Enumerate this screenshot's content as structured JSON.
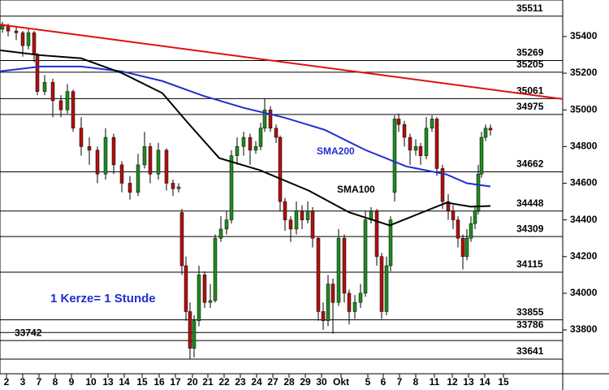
{
  "chart_data": {
    "type": "candlestick",
    "xlim": [
      0,
      693
    ],
    "xticks": [
      {
        "value": 8,
        "label": "2"
      },
      {
        "value": 28,
        "label": "3"
      },
      {
        "value": 48,
        "label": "7"
      },
      {
        "value": 68,
        "label": "8"
      },
      {
        "value": 88,
        "label": "9"
      },
      {
        "value": 112,
        "label": "10"
      },
      {
        "value": 133,
        "label": "13"
      },
      {
        "value": 153,
        "label": "14"
      },
      {
        "value": 175,
        "label": "15"
      },
      {
        "value": 196,
        "label": "16"
      },
      {
        "value": 216,
        "label": "17"
      },
      {
        "value": 237,
        "label": "20"
      },
      {
        "value": 256,
        "label": "21"
      },
      {
        "value": 276,
        "label": "22"
      },
      {
        "value": 296,
        "label": "23"
      },
      {
        "value": 316,
        "label": "24"
      },
      {
        "value": 336,
        "label": "27"
      },
      {
        "value": 356,
        "label": "28"
      },
      {
        "value": 376,
        "label": "29"
      },
      {
        "value": 396,
        "label": "30"
      },
      {
        "value": 420,
        "label": "Okt"
      },
      {
        "value": 453,
        "label": "5"
      },
      {
        "value": 472,
        "label": "6"
      },
      {
        "value": 492,
        "label": "7"
      },
      {
        "value": 512,
        "label": "8"
      },
      {
        "value": 535,
        "label": "11"
      },
      {
        "value": 557,
        "label": "12"
      },
      {
        "value": 577,
        "label": "13"
      },
      {
        "value": 597,
        "label": "14"
      },
      {
        "value": 620,
        "label": "15"
      }
    ],
    "ylim": [
      33561,
      35599
    ],
    "yticks": [
      33800,
      34000,
      34200,
      34400,
      34600,
      34800,
      35000,
      35200,
      35400
    ],
    "up_color": "#1f8a1f",
    "down_color": "#b01010",
    "x": [
      3,
      10,
      20,
      28,
      35,
      42,
      46,
      55,
      65,
      75,
      83,
      90,
      100,
      110,
      120,
      130,
      140,
      150,
      160,
      170,
      178,
      185,
      195,
      205,
      213,
      220,
      224,
      229,
      234,
      239,
      245,
      252,
      259,
      265,
      272,
      279,
      285,
      292,
      300,
      308,
      315,
      321,
      326,
      333,
      340,
      345,
      351,
      358,
      365,
      372,
      379,
      385,
      392,
      398,
      404,
      410,
      417,
      424,
      430,
      437,
      444,
      450,
      457,
      464,
      470,
      476,
      481,
      486,
      491,
      498,
      505,
      512,
      518,
      525,
      532,
      538,
      545,
      552,
      558,
      564,
      570,
      575,
      580,
      585,
      589,
      593,
      598,
      604
    ],
    "open": [
      35440,
      35460,
      35430,
      35420,
      35350,
      35420,
      35300,
      35100,
      35150,
      35050,
      35000,
      35100,
      34900,
      34800,
      34780,
      34650,
      34850,
      34700,
      34600,
      34550,
      34700,
      34800,
      34650,
      34780,
      34600,
      34570,
      34440,
      34150,
      33900,
      33700,
      33850,
      34100,
      33950,
      33960,
      34300,
      34350,
      34400,
      34750,
      34800,
      34850,
      34780,
      34800,
      34900,
      35000,
      34900,
      34850,
      34500,
      34400,
      34350,
      34450,
      34400,
      34450,
      34300,
      33900,
      33850,
      34050,
      33950,
      34300,
      34000,
      33900,
      33950,
      34000,
      34400,
      34450,
      34200,
      33900,
      34150,
      34550,
      34950,
      34920,
      34850,
      34780,
      34800,
      34750,
      34900,
      34950,
      34680,
      34500,
      34450,
      34400,
      34300,
      34200,
      34300,
      34380,
      34450,
      34650,
      34850,
      34900
    ],
    "high": [
      35480,
      35470,
      35450,
      35430,
      35440,
      35430,
      35310,
      35190,
      35170,
      35080,
      35140,
      35110,
      34960,
      34850,
      34800,
      34900,
      34870,
      34720,
      34640,
      34760,
      34880,
      34820,
      34820,
      34790,
      34620,
      34600,
      34460,
      34200,
      33950,
      33880,
      34150,
      34120,
      34050,
      34320,
      34420,
      34450,
      34780,
      34850,
      34880,
      34870,
      34830,
      34930,
      35060,
      35020,
      34920,
      34860,
      34520,
      34420,
      34500,
      34480,
      34500,
      34470,
      34310,
      33950,
      34100,
      34080,
      34350,
      34320,
      34020,
      33990,
      34050,
      34450,
      34470,
      34460,
      34220,
      34200,
      34420,
      34970,
      34980,
      34940,
      34870,
      34840,
      34820,
      34960,
      34970,
      34960,
      34700,
      34540,
      34480,
      34420,
      34320,
      34350,
      34420,
      34480,
      34700,
      34880,
      34920,
      34920
    ],
    "low": [
      35420,
      35400,
      35380,
      35290,
      35330,
      35260,
      35080,
      35080,
      34960,
      34960,
      34980,
      34880,
      34750,
      34700,
      34600,
      34620,
      34650,
      34550,
      34510,
      34530,
      34680,
      34600,
      34620,
      34560,
      34530,
      34550,
      34100,
      33850,
      33640,
      33650,
      33820,
      33920,
      33920,
      33950,
      34280,
      34320,
      34380,
      34700,
      34750,
      34700,
      34760,
      34780,
      34880,
      34880,
      34820,
      34450,
      34340,
      34280,
      34320,
      34350,
      34380,
      34250,
      33850,
      33800,
      33820,
      33780,
      33930,
      33950,
      33830,
      33860,
      33920,
      33980,
      34380,
      34150,
      33860,
      33880,
      34120,
      34500,
      34880,
      34800,
      34700,
      34750,
      34700,
      34730,
      34880,
      34640,
      34460,
      34400,
      34350,
      34250,
      34130,
      34180,
      34280,
      34350,
      34430,
      34630,
      34830,
      34860
    ],
    "close": [
      35460,
      35430,
      35420,
      35350,
      35420,
      35300,
      35100,
      35150,
      35050,
      35000,
      35100,
      34900,
      34800,
      34780,
      34650,
      34850,
      34700,
      34600,
      34550,
      34700,
      34800,
      34650,
      34780,
      34600,
      34570,
      34580,
      34150,
      33900,
      33700,
      33850,
      34100,
      33950,
      33960,
      34300,
      34350,
      34400,
      34750,
      34800,
      34850,
      34780,
      34800,
      34900,
      35000,
      34900,
      34850,
      34500,
      34400,
      34350,
      34450,
      34400,
      34450,
      34300,
      33900,
      33850,
      34050,
      33950,
      34300,
      34000,
      33900,
      33950,
      34000,
      34400,
      34450,
      34200,
      33900,
      34150,
      34400,
      34950,
      34920,
      34850,
      34780,
      34800,
      34750,
      34900,
      34950,
      34680,
      34500,
      34450,
      34400,
      34300,
      34200,
      34300,
      34380,
      34450,
      34650,
      34850,
      34900,
      34890
    ],
    "lines": [
      {
        "name": "SMA200",
        "color": "#1f2fd0",
        "x": [
          0,
          50,
          100,
          150,
          200,
          250,
          300,
          350,
          400,
          450,
          500,
          550,
          575,
          604
        ],
        "values": [
          35210,
          35236,
          35236,
          35210,
          35157,
          35077,
          35011,
          34958,
          34891,
          34781,
          34692,
          34648,
          34600,
          34582
        ]
      },
      {
        "name": "SMA100",
        "color": "#000000",
        "x": [
          0,
          50,
          100,
          150,
          200,
          230,
          270,
          320,
          380,
          430,
          480,
          520,
          550,
          580,
          604
        ],
        "values": [
          35325,
          35298,
          35281,
          35201,
          35091,
          34936,
          34737,
          34671,
          34560,
          34441,
          34370,
          34441,
          34494,
          34472,
          34476
        ]
      },
      {
        "color": "#e01010",
        "x": [
          0,
          693
        ],
        "values": [
          35465,
          35059
        ]
      }
    ],
    "levels": [
      35511,
      35269,
      35205,
      35061,
      34975,
      34662,
      34448,
      34309,
      34115,
      33855,
      33786,
      33742,
      33641
    ],
    "annotations": [
      "1 Kerze= 1 Stunde"
    ]
  }
}
